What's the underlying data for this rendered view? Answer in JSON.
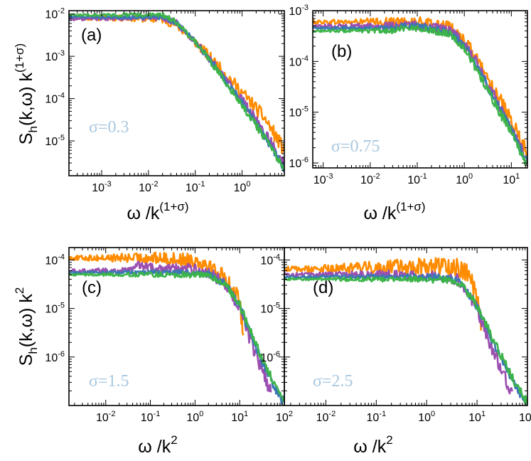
{
  "figure": {
    "colors": {
      "orange": "#ff8c00",
      "purple": "#9b4fb0",
      "blue": "#3b78b4",
      "green": "#3cb449",
      "sigma_text": "#a9c8e0"
    }
  },
  "chart_data": [
    {
      "type": "line",
      "panel_label": "(a)",
      "annotation": "σ=0.3",
      "xlabel": "ω /k(1+σ)",
      "ylabel": "Sh(k,ω) k(1+σ)",
      "xscale": "log",
      "yscale": "log",
      "xlim": [
        0.0002,
        8.0
      ],
      "ylim": [
        1.5e-06,
        0.012
      ],
      "xticks": [
        {
          "label": "10",
          "exp": "-3"
        },
        {
          "label": "10",
          "exp": "-2"
        },
        {
          "label": "10",
          "exp": "-1"
        },
        {
          "label": "10",
          "exp": "0"
        }
      ],
      "yticks": [
        {
          "label": "10",
          "exp": "-5"
        },
        {
          "label": "10",
          "exp": "-4"
        },
        {
          "label": "10",
          "exp": "-3"
        },
        {
          "label": "10",
          "exp": "-2"
        }
      ],
      "series": [
        {
          "color_key": "green",
          "noise": 0.05,
          "x": [
            0.0002,
            0.02,
            0.04,
            0.1,
            0.3,
            1.0,
            3.0,
            8.0
          ],
          "y": [
            0.0095,
            0.0095,
            0.0065,
            0.0022,
            0.00045,
            7e-05,
            1.2e-05,
            2e-06
          ]
        },
        {
          "color_key": "blue",
          "noise": 0.05,
          "x": [
            0.0002,
            0.02,
            0.04,
            0.1,
            0.3,
            1.0,
            3.0,
            8.0
          ],
          "y": [
            0.0085,
            0.0085,
            0.0062,
            0.0022,
            0.00048,
            8e-05,
            1.3e-05,
            2.2e-06
          ]
        },
        {
          "color_key": "purple",
          "noise": 0.07,
          "x": [
            0.0002,
            0.02,
            0.04,
            0.1,
            0.3,
            1.0,
            3.0,
            8.0
          ],
          "y": [
            0.0075,
            0.0085,
            0.006,
            0.0022,
            0.0005,
            9e-05,
            1.6e-05,
            2.6e-06
          ]
        },
        {
          "color_key": "orange",
          "noise": 0.09,
          "x": [
            0.0002,
            0.005,
            0.02,
            0.04,
            0.1,
            0.3,
            1.0,
            3.0,
            8.0
          ],
          "y": [
            0.008,
            0.008,
            0.0075,
            0.0055,
            0.0022,
            0.0006,
            0.00014,
            3.5e-05,
            6e-06
          ]
        }
      ]
    },
    {
      "type": "line",
      "panel_label": "(b)",
      "annotation": "σ=0.75",
      "xlabel": "ω /k(1+σ)",
      "ylabel": "",
      "xscale": "log",
      "yscale": "log",
      "xlim": [
        0.0006,
        22.0
      ],
      "ylim": [
        8e-07,
        0.001
      ],
      "xticks": [
        {
          "label": "10",
          "exp": "-3"
        },
        {
          "label": "10",
          "exp": "-2"
        },
        {
          "label": "10",
          "exp": "-1"
        },
        {
          "label": "10",
          "exp": "0"
        },
        {
          "label": "10",
          "exp": "1"
        }
      ],
      "yticks": [
        {
          "label": "10",
          "exp": "-6"
        },
        {
          "label": "10",
          "exp": "-5"
        },
        {
          "label": "10",
          "exp": "-4"
        },
        {
          "label": "10",
          "exp": "-3"
        }
      ],
      "series": [
        {
          "color_key": "green",
          "noise": 0.05,
          "x": [
            0.0006,
            0.03,
            0.04,
            0.1,
            0.5,
            1.0,
            2.0,
            5.0,
            10.0,
            22.0
          ],
          "y": [
            0.0004,
            0.0004,
            0.00045,
            0.00045,
            0.00035,
            0.00018,
            6e-05,
            1.2e-05,
            4e-06,
            9e-07
          ]
        },
        {
          "color_key": "blue",
          "noise": 0.05,
          "x": [
            0.0006,
            0.03,
            0.05,
            0.1,
            0.5,
            1.0,
            2.0,
            5.0,
            10.0,
            22.0
          ],
          "y": [
            0.00045,
            0.00045,
            0.0005,
            0.0005,
            0.00037,
            0.0002,
            7e-05,
            1.4e-05,
            4.5e-06,
            1e-06
          ]
        },
        {
          "color_key": "purple",
          "noise": 0.07,
          "x": [
            0.0006,
            0.02,
            0.05,
            0.1,
            0.5,
            1.0,
            2.0,
            5.0,
            10.0,
            22.0
          ],
          "y": [
            0.0005,
            0.0005,
            0.00052,
            0.00052,
            0.0004,
            0.00022,
            8e-05,
            1.6e-05,
            5e-06,
            1.2e-06
          ]
        },
        {
          "color_key": "orange",
          "noise": 0.09,
          "x": [
            0.0006,
            0.01,
            0.1,
            0.5,
            1.0,
            2.0,
            5.0,
            10.0,
            22.0
          ],
          "y": [
            0.0006,
            0.0006,
            0.0006,
            0.00045,
            0.00025,
            0.0001,
            2.2e-05,
            6e-06,
            1.5e-06
          ]
        }
      ]
    },
    {
      "type": "line",
      "panel_label": "(c)",
      "annotation": "σ=1.5",
      "xlabel": "ω /k2",
      "ylabel": "Sh(k,ω) k2",
      "xscale": "log",
      "yscale": "log",
      "xlim": [
        0.0015,
        100.0
      ],
      "ylim": [
        1e-07,
        0.00018
      ],
      "xticks": [
        {
          "label": "10",
          "exp": "-2"
        },
        {
          "label": "10",
          "exp": "-1"
        },
        {
          "label": "10",
          "exp": "0"
        },
        {
          "label": "10",
          "exp": "1"
        },
        {
          "label": "10",
          "exp": "2"
        }
      ],
      "yticks": [
        {
          "label": "10",
          "exp": "-6"
        },
        {
          "label": "10",
          "exp": "-5"
        },
        {
          "label": "10",
          "exp": "-4"
        }
      ],
      "series": [
        {
          "color_key": "green",
          "noise": 0.05,
          "x": [
            0.0015,
            0.1,
            1.0,
            2.0,
            5.0,
            10.0,
            20.0,
            40.0,
            70.0,
            100.0
          ],
          "y": [
            5e-05,
            5e-05,
            5e-05,
            4.8e-05,
            3e-05,
            1.2e-05,
            2.5e-06,
            6e-07,
            2e-07,
            1.2e-07
          ]
        },
        {
          "color_key": "blue",
          "noise": 0.05,
          "x": [
            0.0015,
            0.1,
            1.0,
            2.0,
            5.0,
            10.0,
            20.0,
            40.0,
            70.0,
            100.0
          ],
          "y": [
            5.5e-05,
            5.5e-05,
            5.5e-05,
            5e-05,
            3e-05,
            1.1e-05,
            2.2e-06,
            5e-07,
            1.8e-07,
            1.1e-07
          ]
        },
        {
          "color_key": "purple",
          "noise": 0.08,
          "x": [
            0.0015,
            0.03,
            0.05,
            0.1,
            1.0,
            2.0,
            5.0,
            10.0,
            20.0,
            40.0,
            50.0
          ],
          "y": [
            6e-05,
            6e-05,
            8e-05,
            7e-05,
            6.5e-05,
            5.5e-05,
            3e-05,
            1e-05,
            1.5e-06,
            3e-07,
            2e-07
          ]
        },
        {
          "color_key": "orange",
          "noise": 0.1,
          "x": [
            0.0015,
            0.1,
            1.0,
            2.0,
            5.0,
            8.0,
            10.0,
            12.0
          ],
          "y": [
            0.00011,
            0.00011,
            0.0001,
            8e-05,
            4e-05,
            2e-05,
            1.2e-05,
            4e-06
          ]
        }
      ]
    },
    {
      "type": "line",
      "panel_label": "(d)",
      "annotation": "σ=2.5",
      "xlabel": "ω /k2",
      "ylabel": "",
      "xscale": "log",
      "yscale": "log",
      "xlim": [
        0.0015,
        100.0
      ],
      "ylim": [
        1e-07,
        0.00018
      ],
      "xticks": [
        {
          "label": "10",
          "exp": "-2"
        },
        {
          "label": "10",
          "exp": "-1"
        },
        {
          "label": "10",
          "exp": "0"
        },
        {
          "label": "10",
          "exp": "1"
        },
        {
          "label": "10",
          "exp": "2"
        }
      ],
      "yticks": [
        {
          "label": "10",
          "exp": "-6"
        },
        {
          "label": "10",
          "exp": "-5"
        },
        {
          "label": "10",
          "exp": "-4"
        }
      ],
      "series": [
        {
          "color_key": "green",
          "noise": 0.05,
          "x": [
            0.0015,
            0.1,
            1.0,
            3.0,
            5.0,
            10.0,
            20.0,
            40.0,
            70.0,
            100.0
          ],
          "y": [
            4e-05,
            4e-05,
            4e-05,
            3.8e-05,
            3e-05,
            1.2e-05,
            2.5e-06,
            6e-07,
            2e-07,
            1.2e-07
          ]
        },
        {
          "color_key": "blue",
          "noise": 0.05,
          "x": [
            0.0015,
            0.1,
            1.0,
            3.0,
            5.0,
            10.0,
            20.0,
            40.0,
            70.0,
            100.0
          ],
          "y": [
            4.5e-05,
            4.5e-05,
            4.5e-05,
            4.3e-05,
            3.2e-05,
            1.1e-05,
            2.2e-06,
            5e-07,
            1.8e-07,
            1.1e-07
          ]
        },
        {
          "color_key": "purple",
          "noise": 0.08,
          "x": [
            0.0015,
            0.03,
            0.1,
            1.0,
            3.0,
            5.0,
            10.0,
            20.0,
            40.0,
            50.0
          ],
          "y": [
            5e-05,
            5e-05,
            5e-05,
            5e-05,
            4.5e-05,
            3.5e-05,
            1e-05,
            1.5e-06,
            3e-07,
            2e-07
          ]
        },
        {
          "color_key": "orange",
          "noise": 0.12,
          "x": [
            0.0015,
            0.01,
            0.1,
            1.0,
            5.0,
            8.0,
            10.0,
            12.0
          ],
          "y": [
            6.5e-05,
            6.5e-05,
            7e-05,
            7.5e-05,
            7e-05,
            4e-05,
            1.5e-05,
            5e-06
          ]
        }
      ]
    }
  ]
}
